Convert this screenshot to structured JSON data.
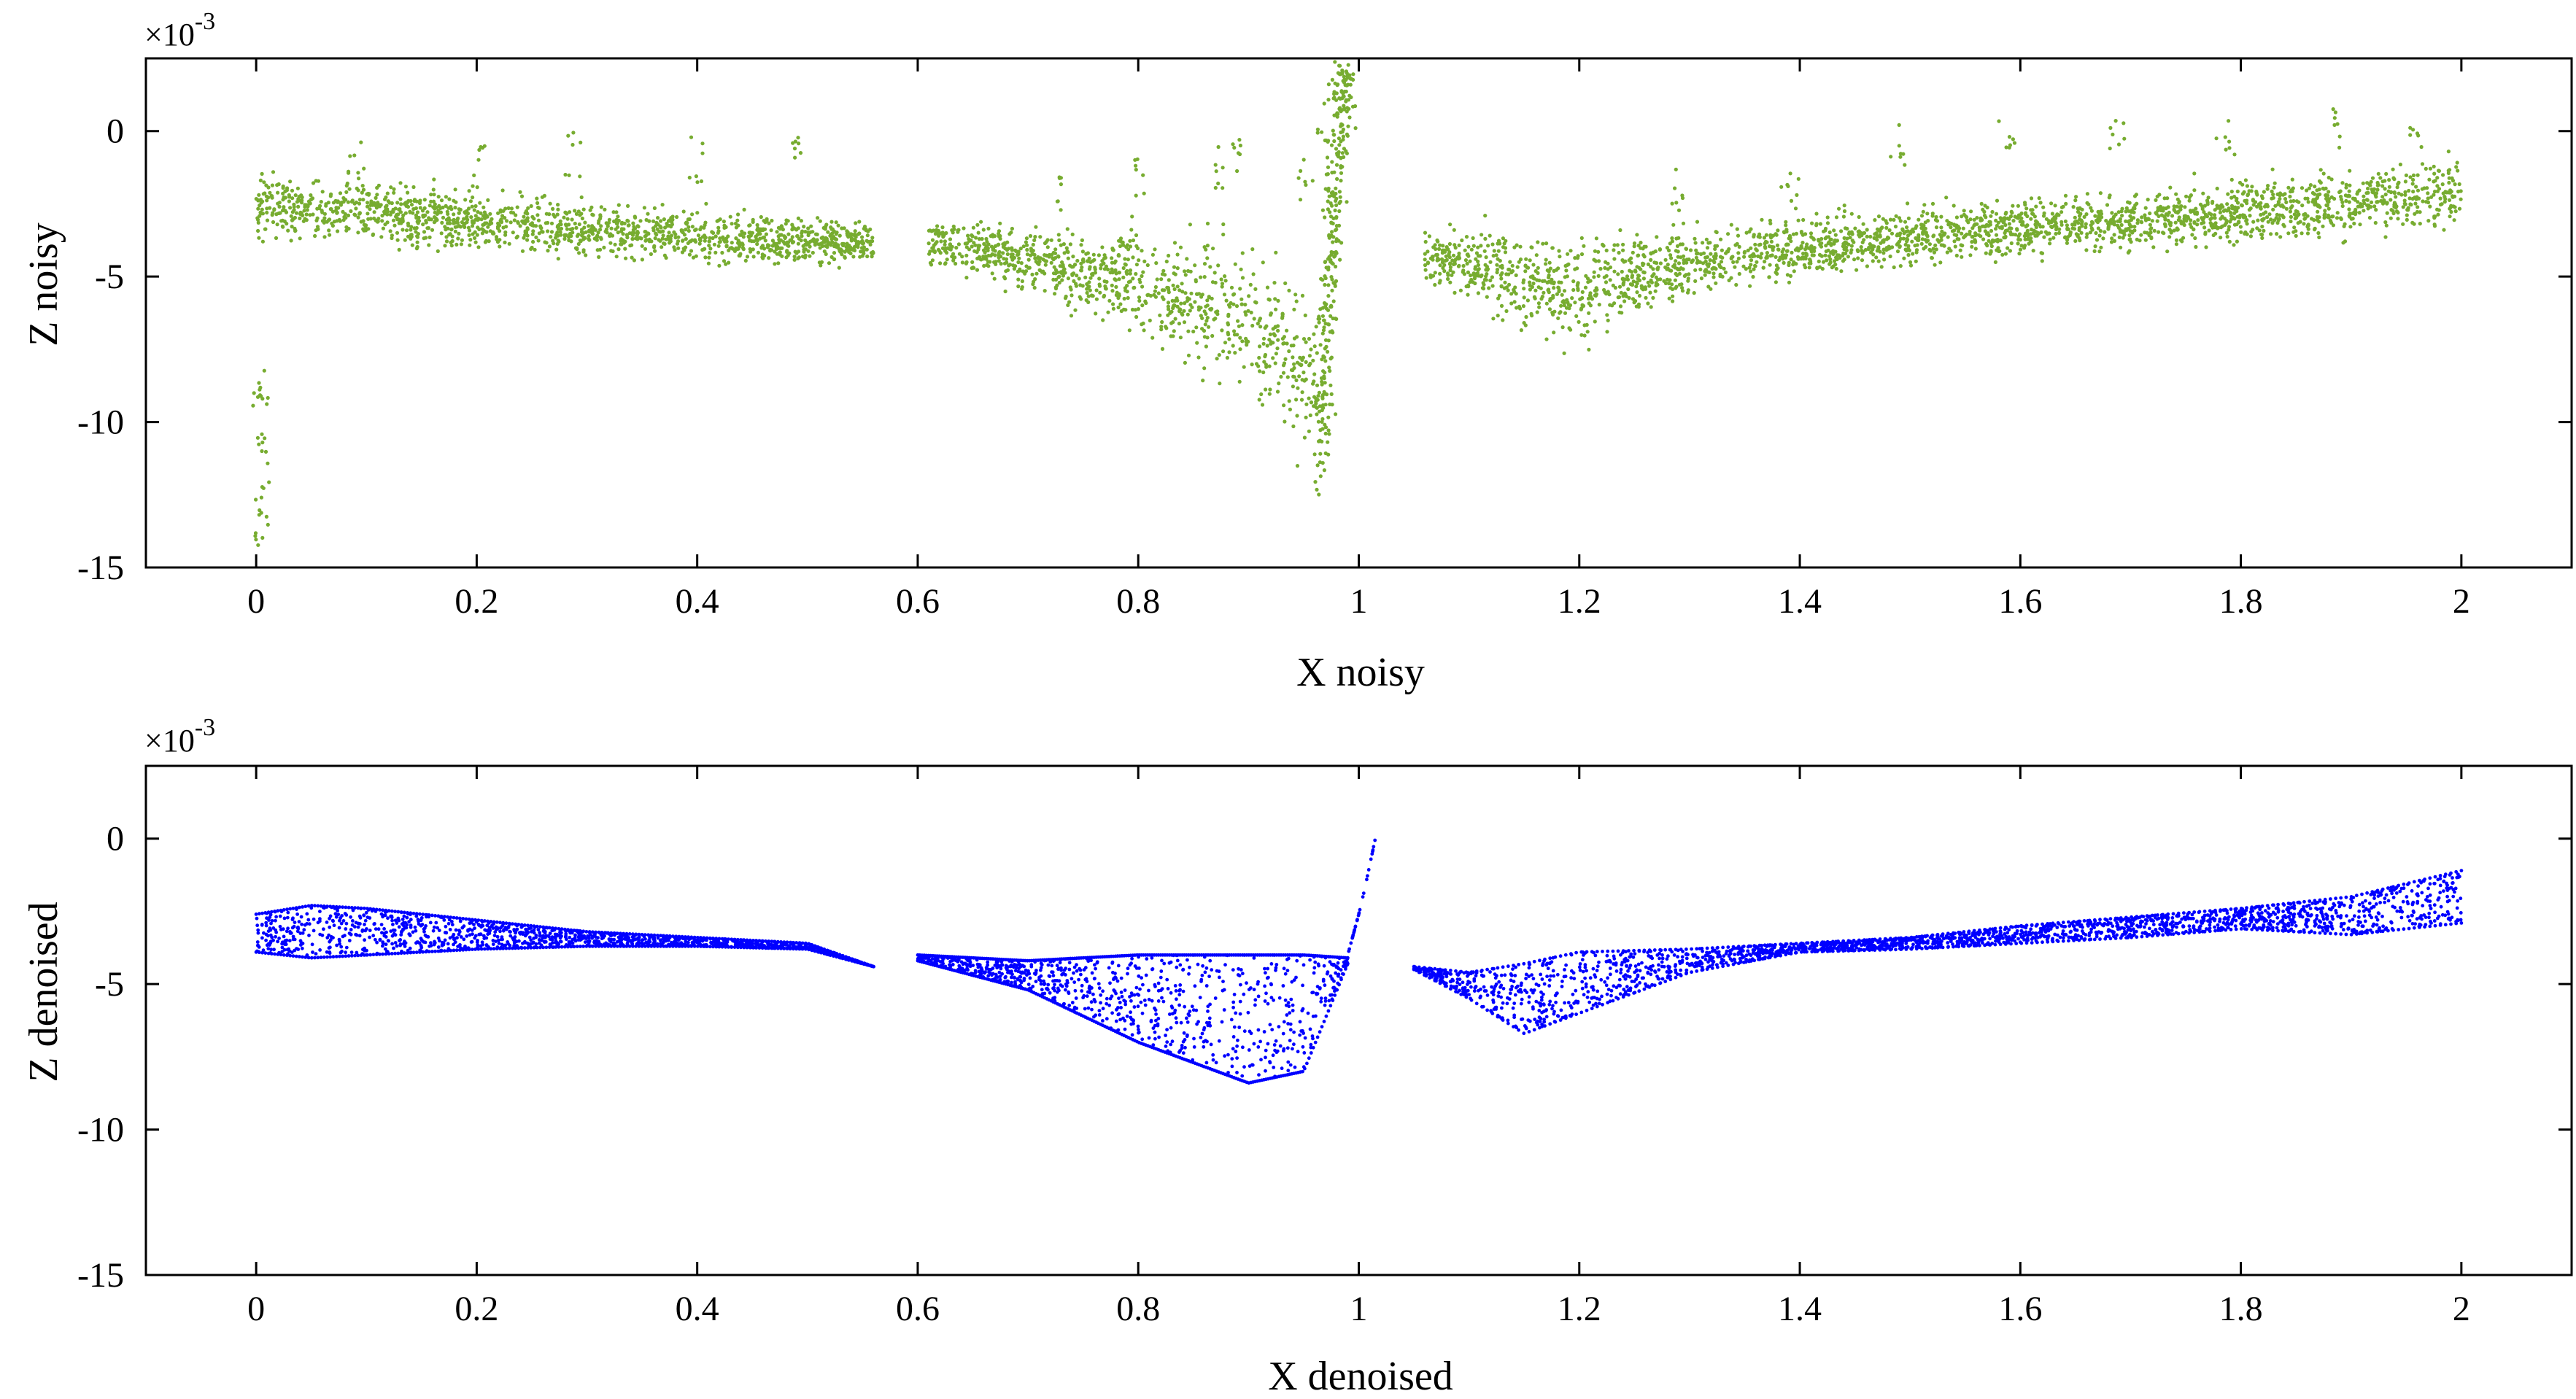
{
  "chart_data": [
    {
      "type": "scatter",
      "id": "noisy",
      "xlabel": "X noisy",
      "ylabel": "Z noisy",
      "y_scale_label": "×10",
      "y_scale_exponent": "-3",
      "xlim": [
        -0.1,
        2.1
      ],
      "ylim": [
        -15,
        2.5
      ],
      "xticks": [
        0,
        0.2,
        0.4,
        0.6,
        0.8,
        1,
        1.2,
        1.4,
        1.6,
        1.8,
        2
      ],
      "xtick_labels": [
        "0",
        "0.2",
        "0.4",
        "0.6",
        "0.8",
        "1",
        "1.2",
        "1.4",
        "1.6",
        "1.8",
        "2"
      ],
      "yticks": [
        0,
        -5,
        -10,
        -15
      ],
      "ytick_labels": [
        "0",
        "-5",
        "-10",
        "-15"
      ],
      "color": "#77ac30",
      "grid": false,
      "segments": [
        {
          "name": "left",
          "x": [
            0.0,
            0.1,
            0.2,
            0.3,
            0.4,
            0.5,
            0.56
          ],
          "center": [
            -2.6,
            -2.8,
            -3.1,
            -3.4,
            -3.6,
            -3.7,
            -3.9
          ],
          "spread": [
            1.0,
            0.9,
            0.9,
            0.9,
            0.8,
            0.8,
            0.6
          ]
        },
        {
          "name": "middle",
          "x": [
            0.61,
            0.7,
            0.8,
            0.9,
            0.96,
            0.98
          ],
          "center": [
            -3.8,
            -4.4,
            -5.2,
            -6.6,
            -8.5,
            -4.0
          ],
          "spread": [
            0.8,
            1.0,
            1.6,
            2.3,
            3.0,
            4.5
          ]
        },
        {
          "name": "right",
          "x": [
            1.06,
            1.12,
            1.19,
            1.3,
            1.4,
            1.5,
            1.6,
            1.7,
            1.8,
            1.9,
            2.0
          ],
          "center": [
            -4.2,
            -4.8,
            -5.6,
            -4.5,
            -4.0,
            -3.6,
            -3.3,
            -3.1,
            -2.8,
            -2.5,
            -2.1
          ],
          "spread": [
            0.8,
            1.3,
            1.6,
            1.1,
            0.9,
            0.9,
            0.9,
            0.9,
            1.0,
            1.1,
            1.3
          ]
        }
      ],
      "outliers": {
        "x": [
          0.002,
          0.005,
          0.008,
          0.004,
          0.003,
          0.09,
          0.2,
          0.29,
          0.4,
          0.49,
          0.73,
          0.8,
          0.87,
          0.89,
          0.95,
          0.97,
          0.98,
          0.99,
          1.29,
          1.39,
          1.49,
          1.59,
          1.69,
          1.79,
          1.89,
          1.96
        ],
        "y": [
          -13.0,
          -12.0,
          -10.5,
          -9.0,
          -8.0,
          -0.3,
          -0.5,
          0.0,
          -0.2,
          -0.1,
          -1.2,
          -0.8,
          -0.5,
          0.2,
          -0.9,
          1.2,
          2.0,
          0.8,
          -1.2,
          -1.0,
          0.4,
          0.6,
          0.6,
          0.4,
          0.8,
          0.2
        ]
      },
      "spike": {
        "x": [
          0.965,
          0.97,
          0.975,
          0.98,
          0.985,
          0.99
        ],
        "y": [
          -11.5,
          -8.0,
          -4.5,
          -1.0,
          1.5,
          1.5
        ]
      }
    },
    {
      "type": "scatter",
      "id": "denoised",
      "xlabel": "X denoised",
      "ylabel": "Z denoised",
      "y_scale_label": "×10",
      "y_scale_exponent": "-3",
      "xlim": [
        -0.1,
        2.1
      ],
      "ylim": [
        -15,
        2.5
      ],
      "xticks": [
        0,
        0.2,
        0.4,
        0.6,
        0.8,
        1,
        1.2,
        1.4,
        1.6,
        1.8,
        2
      ],
      "xtick_labels": [
        "0",
        "0.2",
        "0.4",
        "0.6",
        "0.8",
        "1",
        "1.2",
        "1.4",
        "1.6",
        "1.8",
        "2"
      ],
      "yticks": [
        0,
        -5,
        -10,
        -15
      ],
      "ytick_labels": [
        "0",
        "-5",
        "-10",
        "-15"
      ],
      "color": "#0000ff",
      "grid": false,
      "segments": [
        {
          "name": "left",
          "x": [
            0.0,
            0.05,
            0.1,
            0.2,
            0.3,
            0.4,
            0.5,
            0.56
          ],
          "upper": [
            -2.6,
            -2.3,
            -2.4,
            -2.8,
            -3.2,
            -3.4,
            -3.6,
            -4.4
          ],
          "lower": [
            -3.9,
            -4.1,
            -4.0,
            -3.8,
            -3.7,
            -3.7,
            -3.8,
            -4.4
          ]
        },
        {
          "name": "middle",
          "x": [
            0.6,
            0.7,
            0.8,
            0.9,
            0.95,
            0.99
          ],
          "upper": [
            -4.0,
            -4.2,
            -4.0,
            -4.0,
            -4.0,
            -4.1
          ],
          "lower": [
            -4.2,
            -5.2,
            -7.0,
            -8.4,
            -8.0,
            -4.3
          ]
        },
        {
          "name": "right",
          "x": [
            1.05,
            1.1,
            1.15,
            1.2,
            1.3,
            1.4,
            1.5,
            1.6,
            1.7,
            1.8,
            1.9,
            2.0
          ],
          "upper": [
            -4.4,
            -4.6,
            -4.3,
            -3.9,
            -3.8,
            -3.6,
            -3.4,
            -3.0,
            -2.7,
            -2.4,
            -2.0,
            -1.1
          ],
          "lower": [
            -4.5,
            -5.5,
            -6.7,
            -6.0,
            -4.6,
            -3.9,
            -3.8,
            -3.6,
            -3.4,
            -3.1,
            -3.3,
            -2.9
          ]
        }
      ],
      "spike": {
        "x": [
          0.99,
          1.0,
          1.005,
          1.01,
          1.015
        ],
        "y": [
          -4.0,
          -2.6,
          -1.8,
          -0.9,
          0.0
        ]
      }
    }
  ]
}
